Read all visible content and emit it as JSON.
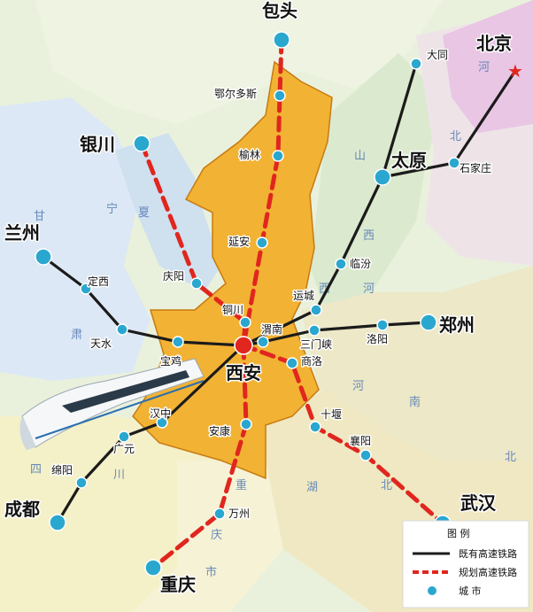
{
  "cities": [
    {
      "id": "baotou",
      "name": "包头",
      "type": "major"
    },
    {
      "id": "erdos",
      "name": "鄂尔多斯",
      "type": "city"
    },
    {
      "id": "yulin",
      "name": "榆林",
      "type": "city"
    },
    {
      "id": "yinchuan",
      "name": "银川",
      "type": "major"
    },
    {
      "id": "yanan",
      "name": "延安",
      "type": "city"
    },
    {
      "id": "qingyang",
      "name": "庆阳",
      "type": "city"
    },
    {
      "id": "tongchuan",
      "name": "铜川",
      "type": "city"
    },
    {
      "id": "lanzhou",
      "name": "兰州",
      "type": "major"
    },
    {
      "id": "dingxi",
      "name": "定西",
      "type": "city"
    },
    {
      "id": "tianshui",
      "name": "天水",
      "type": "city"
    },
    {
      "id": "baoji",
      "name": "宝鸡",
      "type": "city"
    },
    {
      "id": "xian",
      "name": "西安",
      "type": "capital"
    },
    {
      "id": "weinan",
      "name": "渭南",
      "type": "city"
    },
    {
      "id": "yuncheng",
      "name": "运城",
      "type": "city"
    },
    {
      "id": "linfen",
      "name": "临汾",
      "type": "city"
    },
    {
      "id": "taiyuan",
      "name": "太原",
      "type": "major"
    },
    {
      "id": "datong",
      "name": "大同",
      "type": "city"
    },
    {
      "id": "beijing",
      "name": "北京",
      "type": "star"
    },
    {
      "id": "shijiazhuang",
      "name": "石家庄",
      "type": "city"
    },
    {
      "id": "sanmenxia",
      "name": "三门峡",
      "type": "city"
    },
    {
      "id": "luoyang",
      "name": "洛阳",
      "type": "city"
    },
    {
      "id": "zhengzhou",
      "name": "郑州",
      "type": "major"
    },
    {
      "id": "shangluo",
      "name": "商洛",
      "type": "city"
    },
    {
      "id": "shiyan",
      "name": "十堰",
      "type": "city"
    },
    {
      "id": "xiangyang",
      "name": "襄阳",
      "type": "city"
    },
    {
      "id": "wuhan",
      "name": "武汉",
      "type": "major"
    },
    {
      "id": "hanzhong",
      "name": "汉中",
      "type": "city"
    },
    {
      "id": "ankang",
      "name": "安康",
      "type": "city"
    },
    {
      "id": "guangyuan",
      "name": "广元",
      "type": "city"
    },
    {
      "id": "mianyang",
      "name": "绵阳",
      "type": "city"
    },
    {
      "id": "chengdu",
      "name": "成都",
      "type": "major"
    },
    {
      "id": "wanzhou",
      "name": "万州",
      "type": "city"
    },
    {
      "id": "chongqing",
      "name": "重庆",
      "type": "major"
    }
  ],
  "province_labels": [
    "甘",
    "宁",
    "夏",
    "肃",
    "山",
    "西",
    "河",
    "北",
    "河",
    "南",
    "湖",
    "北",
    "重",
    "庆",
    "市",
    "四",
    "川",
    "西",
    "河",
    "北"
  ],
  "existing_routes": [
    [
      "lanzhou",
      "dingxi",
      "tianshui",
      "baoji",
      "xian"
    ],
    [
      "xian",
      "weinan",
      "sanmenxia",
      "luoyang",
      "zhengzhou"
    ],
    [
      "xian",
      "yuncheng",
      "linfen",
      "taiyuan",
      "datong"
    ],
    [
      "taiyuan",
      "shijiazhuang",
      "beijing"
    ],
    [
      "xian",
      "hanzhong",
      "guangyuan",
      "mianyang",
      "chengdu"
    ]
  ],
  "planned_routes": [
    [
      "baotou",
      "erdos",
      "yulin",
      "yanan",
      "xian"
    ],
    [
      "yinchuan",
      "qingyang",
      "tongchuan",
      "xian"
    ],
    [
      "xian",
      "shangluo",
      "shiyan",
      "xiangyang",
      "wuhan"
    ],
    [
      "xian",
      "ankang",
      "wanzhou",
      "chongqing"
    ]
  ],
  "legend": {
    "title": "图 例",
    "existing": "既有高速铁路",
    "planned": "规划高速铁路",
    "city": "城 市"
  },
  "colors": {
    "shaanxi": "#f2b233",
    "shaanxi_border": "#c77b12",
    "background": "#e9f1dc",
    "sichuan": "#f4f0c8",
    "hubei": "#efe8c2",
    "henan": "#ece8c8",
    "beijing_area": "#e8c6e4",
    "gansu": "#dce8f5",
    "ningxia": "#cfe0ef",
    "hebei": "#eee4e8",
    "shanxi": "#dbe9cf",
    "existing_line": "#1b1b1b",
    "planned_line": "#e0261e",
    "city_dot": "#2aa7cf",
    "xian_dot": "#e0261e",
    "beijing_star": "#e0261e"
  }
}
